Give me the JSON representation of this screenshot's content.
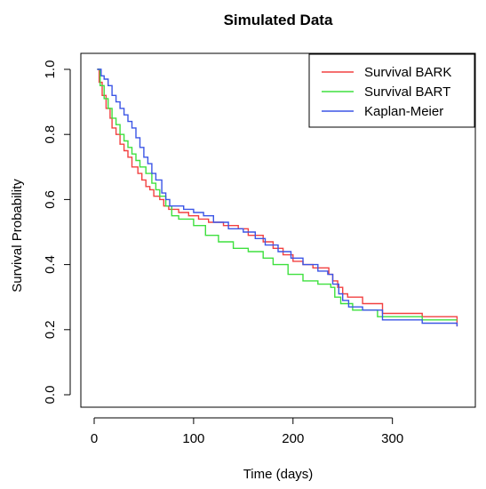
{
  "chart_data": {
    "type": "line",
    "step": true,
    "title": "Simulated Data",
    "xlabel": "Time (days)",
    "ylabel": "Survival Probability",
    "xlim": [
      0,
      370
    ],
    "ylim": [
      0,
      1
    ],
    "xticks": [
      0,
      100,
      200,
      300
    ],
    "yticks": [
      0.0,
      0.2,
      0.4,
      0.6,
      0.8,
      1.0
    ],
    "xtick_labels": [
      "0",
      "100",
      "200",
      "300"
    ],
    "ytick_labels": [
      "0.0",
      "0.2",
      "0.4",
      "0.6",
      "0.8",
      "1.0"
    ],
    "grid": false,
    "legend_position": "top-right",
    "series": [
      {
        "name": "Survival BARK",
        "color": "#f24040",
        "points": [
          [
            3,
            1.0
          ],
          [
            5,
            0.96
          ],
          [
            8,
            0.92
          ],
          [
            12,
            0.88
          ],
          [
            16,
            0.85
          ],
          [
            18,
            0.82
          ],
          [
            22,
            0.8
          ],
          [
            26,
            0.77
          ],
          [
            30,
            0.75
          ],
          [
            34,
            0.73
          ],
          [
            38,
            0.7
          ],
          [
            44,
            0.68
          ],
          [
            48,
            0.66
          ],
          [
            52,
            0.64
          ],
          [
            56,
            0.63
          ],
          [
            60,
            0.61
          ],
          [
            66,
            0.6
          ],
          [
            70,
            0.58
          ],
          [
            75,
            0.57
          ],
          [
            85,
            0.56
          ],
          [
            95,
            0.55
          ],
          [
            105,
            0.54
          ],
          [
            115,
            0.53
          ],
          [
            130,
            0.52
          ],
          [
            145,
            0.51
          ],
          [
            155,
            0.49
          ],
          [
            170,
            0.47
          ],
          [
            180,
            0.45
          ],
          [
            190,
            0.43
          ],
          [
            200,
            0.41
          ],
          [
            210,
            0.4
          ],
          [
            220,
            0.39
          ],
          [
            232,
            0.39
          ],
          [
            236,
            0.37
          ],
          [
            240,
            0.35
          ],
          [
            245,
            0.33
          ],
          [
            250,
            0.31
          ],
          [
            255,
            0.3
          ],
          [
            270,
            0.28
          ],
          [
            290,
            0.25
          ],
          [
            330,
            0.24
          ],
          [
            365,
            0.21
          ]
        ]
      },
      {
        "name": "Survival BART",
        "color": "#3ee03e",
        "points": [
          [
            3,
            1.0
          ],
          [
            6,
            0.95
          ],
          [
            10,
            0.91
          ],
          [
            14,
            0.88
          ],
          [
            18,
            0.85
          ],
          [
            22,
            0.83
          ],
          [
            26,
            0.8
          ],
          [
            30,
            0.78
          ],
          [
            34,
            0.76
          ],
          [
            38,
            0.74
          ],
          [
            42,
            0.72
          ],
          [
            46,
            0.7
          ],
          [
            52,
            0.68
          ],
          [
            58,
            0.65
          ],
          [
            62,
            0.63
          ],
          [
            66,
            0.61
          ],
          [
            72,
            0.58
          ],
          [
            78,
            0.55
          ],
          [
            85,
            0.54
          ],
          [
            100,
            0.52
          ],
          [
            112,
            0.49
          ],
          [
            125,
            0.47
          ],
          [
            140,
            0.45
          ],
          [
            155,
            0.44
          ],
          [
            170,
            0.42
          ],
          [
            180,
            0.4
          ],
          [
            195,
            0.37
          ],
          [
            210,
            0.35
          ],
          [
            225,
            0.34
          ],
          [
            238,
            0.33
          ],
          [
            242,
            0.3
          ],
          [
            248,
            0.28
          ],
          [
            260,
            0.26
          ],
          [
            285,
            0.24
          ],
          [
            330,
            0.23
          ],
          [
            365,
            0.23
          ]
        ]
      },
      {
        "name": "Kaplan-Meier",
        "color": "#3b55e6",
        "points": [
          [
            3,
            1.0
          ],
          [
            7,
            0.98
          ],
          [
            10,
            0.97
          ],
          [
            14,
            0.95
          ],
          [
            18,
            0.92
          ],
          [
            22,
            0.9
          ],
          [
            26,
            0.88
          ],
          [
            30,
            0.86
          ],
          [
            34,
            0.84
          ],
          [
            38,
            0.82
          ],
          [
            42,
            0.79
          ],
          [
            46,
            0.76
          ],
          [
            50,
            0.73
          ],
          [
            54,
            0.71
          ],
          [
            58,
            0.68
          ],
          [
            62,
            0.66
          ],
          [
            68,
            0.62
          ],
          [
            72,
            0.6
          ],
          [
            76,
            0.58
          ],
          [
            90,
            0.57
          ],
          [
            100,
            0.56
          ],
          [
            110,
            0.55
          ],
          [
            120,
            0.53
          ],
          [
            135,
            0.51
          ],
          [
            150,
            0.5
          ],
          [
            162,
            0.48
          ],
          [
            172,
            0.46
          ],
          [
            185,
            0.44
          ],
          [
            198,
            0.42
          ],
          [
            210,
            0.4
          ],
          [
            225,
            0.38
          ],
          [
            235,
            0.37
          ],
          [
            240,
            0.34
          ],
          [
            246,
            0.31
          ],
          [
            250,
            0.29
          ],
          [
            256,
            0.27
          ],
          [
            270,
            0.26
          ],
          [
            290,
            0.23
          ],
          [
            330,
            0.22
          ],
          [
            365,
            0.21
          ]
        ]
      }
    ]
  }
}
